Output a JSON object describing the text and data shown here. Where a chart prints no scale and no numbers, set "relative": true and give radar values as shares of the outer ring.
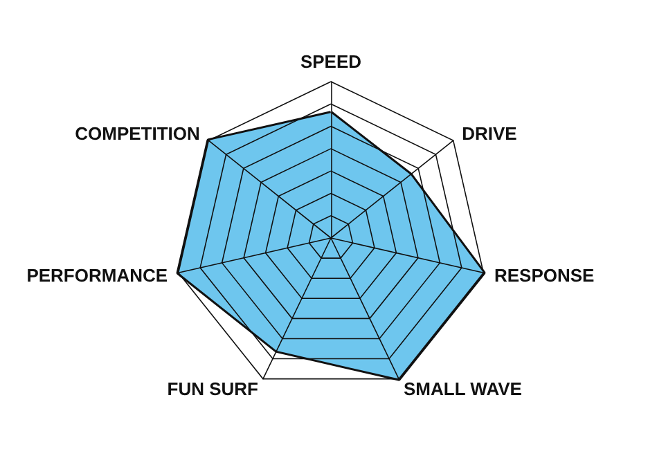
{
  "chart_data": {
    "type": "radar",
    "relative": true,
    "categories": [
      "SPEED",
      "DRIVE",
      "RESPONSE",
      "SMALL WAVE",
      "FUN SURF",
      "PERFORMANCE",
      "COMPETITION"
    ],
    "series": [
      {
        "color": "#6ec6ee",
        "values": [
          0.8,
          0.65,
          1,
          1,
          0.8,
          1,
          1
        ]
      }
    ]
  }
}
